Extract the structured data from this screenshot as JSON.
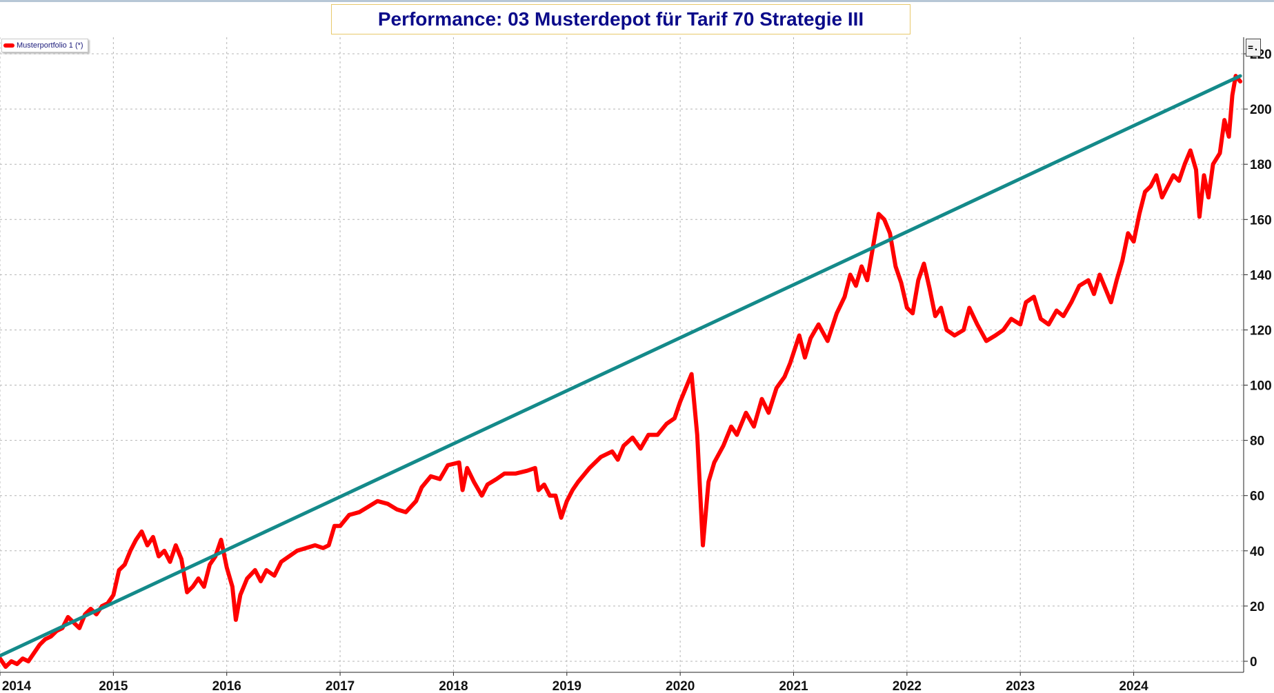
{
  "title": "Performance: 03 Musterdepot für Tarif 70 Strategie III",
  "legend": {
    "series_label": "Musterportfolio 1 (*)"
  },
  "menu_button_label": "=.",
  "colors": {
    "series": "#ff0000",
    "trend": "#148a8a",
    "grid": "#b4b4b4",
    "title_text": "#0b0b8a"
  },
  "chart_data": {
    "type": "line",
    "title": "Performance: 03 Musterdepot für Tarif 70 Strategie III",
    "xlabel": "",
    "ylabel": "",
    "xlim": [
      2014.0,
      2024.97
    ],
    "ylim": [
      -4,
      226
    ],
    "x_ticks": [
      2014,
      2015,
      2016,
      2017,
      2018,
      2019,
      2020,
      2021,
      2022,
      2023,
      2024
    ],
    "y_ticks": [
      0,
      20,
      40,
      60,
      80,
      100,
      120,
      140,
      160,
      180,
      200,
      220
    ],
    "grid": true,
    "legend_position": "top-left",
    "y_axis_side": "right",
    "series": [
      {
        "name": "Musterportfolio 1 (*)",
        "color": "#ff0000",
        "points": [
          [
            2014.0,
            1
          ],
          [
            2014.05,
            -2
          ],
          [
            2014.1,
            0
          ],
          [
            2014.15,
            -1
          ],
          [
            2014.2,
            1
          ],
          [
            2014.25,
            0
          ],
          [
            2014.3,
            3
          ],
          [
            2014.35,
            6
          ],
          [
            2014.4,
            8
          ],
          [
            2014.45,
            9
          ],
          [
            2014.5,
            11
          ],
          [
            2014.55,
            12
          ],
          [
            2014.6,
            16
          ],
          [
            2014.65,
            14
          ],
          [
            2014.7,
            12
          ],
          [
            2014.75,
            17
          ],
          [
            2014.8,
            19
          ],
          [
            2014.85,
            17
          ],
          [
            2014.9,
            20
          ],
          [
            2014.95,
            21
          ],
          [
            2015.0,
            24
          ],
          [
            2015.05,
            33
          ],
          [
            2015.1,
            35
          ],
          [
            2015.15,
            40
          ],
          [
            2015.2,
            44
          ],
          [
            2015.25,
            47
          ],
          [
            2015.3,
            42
          ],
          [
            2015.35,
            45
          ],
          [
            2015.4,
            38
          ],
          [
            2015.45,
            40
          ],
          [
            2015.5,
            36
          ],
          [
            2015.55,
            42
          ],
          [
            2015.6,
            37
          ],
          [
            2015.65,
            25
          ],
          [
            2015.7,
            27
          ],
          [
            2015.75,
            30
          ],
          [
            2015.8,
            27
          ],
          [
            2015.85,
            35
          ],
          [
            2015.9,
            38
          ],
          [
            2015.95,
            44
          ],
          [
            2016.0,
            34
          ],
          [
            2016.05,
            27
          ],
          [
            2016.08,
            15
          ],
          [
            2016.12,
            24
          ],
          [
            2016.18,
            30
          ],
          [
            2016.25,
            33
          ],
          [
            2016.3,
            29
          ],
          [
            2016.35,
            33
          ],
          [
            2016.42,
            31
          ],
          [
            2016.48,
            36
          ],
          [
            2016.55,
            38
          ],
          [
            2016.62,
            40
          ],
          [
            2016.7,
            41
          ],
          [
            2016.78,
            42
          ],
          [
            2016.85,
            41
          ],
          [
            2016.9,
            42
          ],
          [
            2016.95,
            49
          ],
          [
            2017.0,
            49
          ],
          [
            2017.08,
            53
          ],
          [
            2017.17,
            54
          ],
          [
            2017.25,
            56
          ],
          [
            2017.33,
            58
          ],
          [
            2017.42,
            57
          ],
          [
            2017.5,
            55
          ],
          [
            2017.58,
            54
          ],
          [
            2017.67,
            58
          ],
          [
            2017.72,
            63
          ],
          [
            2017.8,
            67
          ],
          [
            2017.88,
            66
          ],
          [
            2017.95,
            71
          ],
          [
            2018.05,
            72
          ],
          [
            2018.08,
            62
          ],
          [
            2018.12,
            70
          ],
          [
            2018.18,
            65
          ],
          [
            2018.25,
            60
          ],
          [
            2018.3,
            64
          ],
          [
            2018.38,
            66
          ],
          [
            2018.45,
            68
          ],
          [
            2018.55,
            68
          ],
          [
            2018.65,
            69
          ],
          [
            2018.72,
            70
          ],
          [
            2018.75,
            62
          ],
          [
            2018.8,
            64
          ],
          [
            2018.85,
            60
          ],
          [
            2018.9,
            60
          ],
          [
            2018.95,
            52
          ],
          [
            2019.0,
            58
          ],
          [
            2019.05,
            62
          ],
          [
            2019.1,
            65
          ],
          [
            2019.2,
            70
          ],
          [
            2019.3,
            74
          ],
          [
            2019.4,
            76
          ],
          [
            2019.45,
            73
          ],
          [
            2019.5,
            78
          ],
          [
            2019.58,
            81
          ],
          [
            2019.65,
            77
          ],
          [
            2019.72,
            82
          ],
          [
            2019.8,
            82
          ],
          [
            2019.88,
            86
          ],
          [
            2019.95,
            88
          ],
          [
            2020.0,
            94
          ],
          [
            2020.1,
            104
          ],
          [
            2020.15,
            82
          ],
          [
            2020.2,
            42
          ],
          [
            2020.25,
            65
          ],
          [
            2020.3,
            72
          ],
          [
            2020.38,
            78
          ],
          [
            2020.45,
            85
          ],
          [
            2020.5,
            82
          ],
          [
            2020.58,
            90
          ],
          [
            2020.65,
            85
          ],
          [
            2020.72,
            95
          ],
          [
            2020.78,
            90
          ],
          [
            2020.85,
            99
          ],
          [
            2020.92,
            103
          ],
          [
            2020.97,
            108
          ],
          [
            2021.05,
            118
          ],
          [
            2021.1,
            110
          ],
          [
            2021.15,
            117
          ],
          [
            2021.22,
            122
          ],
          [
            2021.3,
            116
          ],
          [
            2021.38,
            126
          ],
          [
            2021.45,
            132
          ],
          [
            2021.5,
            140
          ],
          [
            2021.55,
            136
          ],
          [
            2021.6,
            143
          ],
          [
            2021.65,
            138
          ],
          [
            2021.7,
            150
          ],
          [
            2021.75,
            162
          ],
          [
            2021.8,
            160
          ],
          [
            2021.85,
            155
          ],
          [
            2021.9,
            143
          ],
          [
            2021.95,
            137
          ],
          [
            2022.0,
            128
          ],
          [
            2022.05,
            126
          ],
          [
            2022.1,
            138
          ],
          [
            2022.15,
            144
          ],
          [
            2022.2,
            135
          ],
          [
            2022.25,
            125
          ],
          [
            2022.3,
            128
          ],
          [
            2022.35,
            120
          ],
          [
            2022.42,
            118
          ],
          [
            2022.5,
            120
          ],
          [
            2022.55,
            128
          ],
          [
            2022.62,
            122
          ],
          [
            2022.7,
            116
          ],
          [
            2022.78,
            118
          ],
          [
            2022.85,
            120
          ],
          [
            2022.92,
            124
          ],
          [
            2023.0,
            122
          ],
          [
            2023.05,
            130
          ],
          [
            2023.12,
            132
          ],
          [
            2023.18,
            124
          ],
          [
            2023.25,
            122
          ],
          [
            2023.32,
            127
          ],
          [
            2023.38,
            125
          ],
          [
            2023.45,
            130
          ],
          [
            2023.52,
            136
          ],
          [
            2023.6,
            138
          ],
          [
            2023.65,
            133
          ],
          [
            2023.7,
            140
          ],
          [
            2023.75,
            135
          ],
          [
            2023.8,
            130
          ],
          [
            2023.85,
            138
          ],
          [
            2023.9,
            145
          ],
          [
            2023.95,
            155
          ],
          [
            2024.0,
            152
          ],
          [
            2024.05,
            162
          ],
          [
            2024.1,
            170
          ],
          [
            2024.15,
            172
          ],
          [
            2024.2,
            176
          ],
          [
            2024.25,
            168
          ],
          [
            2024.3,
            172
          ],
          [
            2024.35,
            176
          ],
          [
            2024.4,
            174
          ],
          [
            2024.45,
            180
          ],
          [
            2024.5,
            185
          ],
          [
            2024.55,
            178
          ],
          [
            2024.58,
            161
          ],
          [
            2024.62,
            176
          ],
          [
            2024.66,
            168
          ],
          [
            2024.7,
            180
          ],
          [
            2024.76,
            184
          ],
          [
            2024.8,
            196
          ],
          [
            2024.84,
            190
          ],
          [
            2024.87,
            205
          ],
          [
            2024.9,
            212
          ],
          [
            2024.94,
            210
          ]
        ]
      },
      {
        "name": "",
        "color": "#148a8a",
        "points": [
          [
            2014.0,
            2
          ],
          [
            2024.94,
            212
          ]
        ]
      }
    ]
  }
}
